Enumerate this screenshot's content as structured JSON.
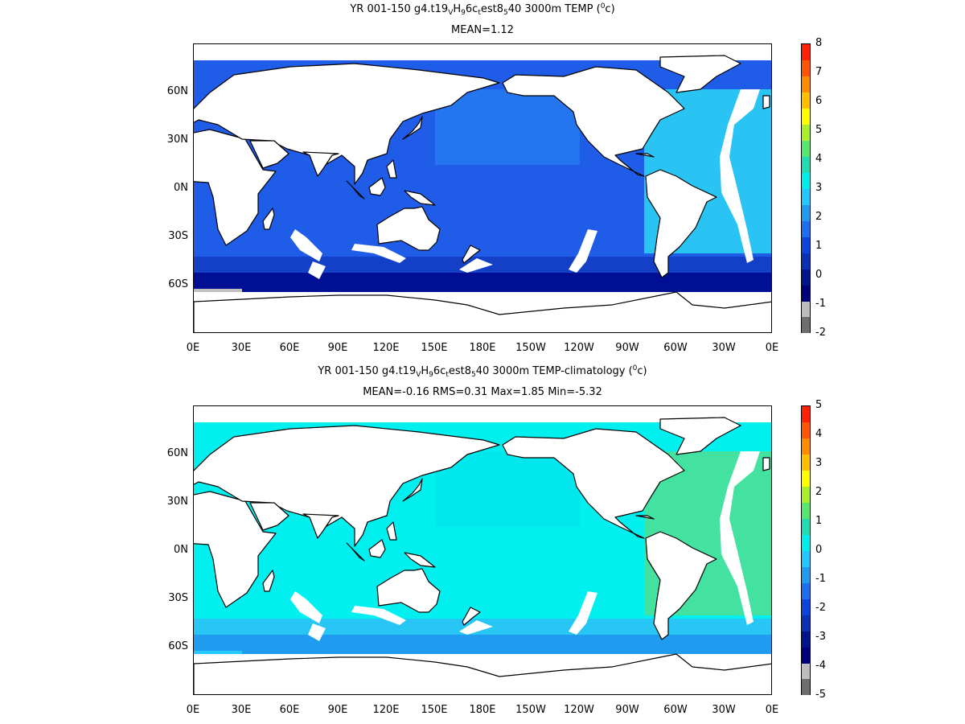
{
  "panels": [
    {
      "title_line1": {
        "pre": "YR 001-150 g4.t19",
        "s1": "V",
        "mid1": "H",
        "s2": "9",
        "mid2": "6c",
        "s3": "t",
        "mid3": "est8",
        "s4": "5",
        "post": "40 3000m TEMP (",
        "sup": "0",
        "end": "c)"
      },
      "title_line2": "MEAN=1.12",
      "colorbar": {
        "labels": [
          "8",
          "7",
          "6",
          "5",
          "4",
          "3",
          "2",
          "1",
          "0",
          "-1",
          "-2"
        ],
        "colors": [
          "#ff2200",
          "#ff5500",
          "#ff8c00",
          "#ffc000",
          "#ffff00",
          "#aaf02a",
          "#55e86e",
          "#22ddb4",
          "#00eeee",
          "#22c8ff",
          "#1f9bf0",
          "#1e6ef0",
          "#0a46dc",
          "#0a32b4",
          "#00148c",
          "#000078",
          "#bdbdbd",
          "#6e6e6e"
        ]
      },
      "ocean": {
        "base": "#1f5ce8",
        "north": "#2575f0",
        "atlantic": "#29c4f4",
        "southern": "#1440c8",
        "antarctic": "#000f94",
        "ice": "#c0c0c0"
      }
    },
    {
      "title_line1": {
        "pre": "YR 001-150 g4.t19",
        "s1": "V",
        "mid1": "H",
        "s2": "9",
        "mid2": "6c",
        "s3": "t",
        "mid3": "est8",
        "s4": "5",
        "post": "40 3000m TEMP-climatology (",
        "sup": "0",
        "end": "c)"
      },
      "title_line2": "MEAN=-0.16   RMS=0.31   Max=1.85   Min=-5.32",
      "colorbar": {
        "labels": [
          "5",
          "4",
          "3",
          "2",
          "1",
          "0",
          "-1",
          "-2",
          "-3",
          "-4",
          "-5"
        ],
        "colors": [
          "#ff2200",
          "#ff5500",
          "#ff8c00",
          "#ffc000",
          "#ffff00",
          "#aaf02a",
          "#55e86e",
          "#22ddb4",
          "#00eeee",
          "#22c8ff",
          "#1f9bf0",
          "#1e6ef0",
          "#0a46dc",
          "#0a32b4",
          "#00148c",
          "#000078",
          "#bdbdbd",
          "#6e6e6e"
        ]
      },
      "ocean": {
        "base": "#00f0f0",
        "north": "#00e8ee",
        "atlantic": "#44e2a0",
        "southern": "#28c6f4",
        "antarctic": "#1f9bf0",
        "ice": "#22c8ff"
      }
    }
  ],
  "axes": {
    "lat_labels": [
      "60N",
      "30N",
      "0N",
      "30S",
      "60S"
    ],
    "lon_labels": [
      "0E",
      "30E",
      "60E",
      "90E",
      "120E",
      "150E",
      "180E",
      "150W",
      "120W",
      "90W",
      "60W",
      "30W",
      "0E"
    ]
  }
}
